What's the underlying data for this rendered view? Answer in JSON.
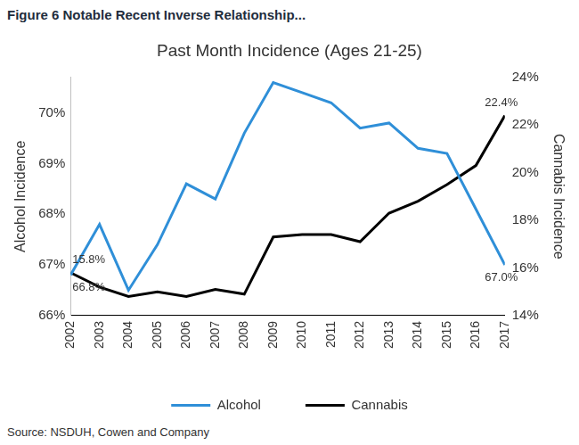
{
  "chart_data": {
    "type": "line",
    "title": "Figure 6 Notable Recent Inverse Relationship...",
    "subtitle": "Past Month Incidence (Ages 21-25)",
    "source": "Source: NSDUH, Cowen and Company",
    "categories": [
      "2002",
      "2003",
      "2004",
      "2005",
      "2006",
      "2007",
      "2008",
      "2009",
      "2010",
      "2011",
      "2012",
      "2013",
      "2014",
      "2015",
      "2016",
      "2017"
    ],
    "series": [
      {
        "name": "Alcohol",
        "color": "#2f8fd8",
        "axis": "y",
        "values": [
          66.8,
          67.8,
          66.5,
          67.4,
          68.6,
          68.3,
          69.6,
          70.6,
          70.4,
          70.2,
          69.7,
          69.8,
          69.3,
          69.2,
          68.1,
          67.0
        ]
      },
      {
        "name": "Cannabis",
        "color": "#000000",
        "axis": "y2",
        "values": [
          15.8,
          15.2,
          14.8,
          15.0,
          14.8,
          15.1,
          14.9,
          17.3,
          17.4,
          17.4,
          17.1,
          18.3,
          18.8,
          19.5,
          20.3,
          22.4
        ]
      }
    ],
    "y_label": "Alcohol Incidence",
    "y2_label": "Cannabis Incidence",
    "ylim": [
      66,
      70.7
    ],
    "yticks": [
      {
        "value": 66,
        "label": "66%"
      },
      {
        "value": 67,
        "label": "67%"
      },
      {
        "value": 68,
        "label": "68%"
      },
      {
        "value": 69,
        "label": "69%"
      },
      {
        "value": 70,
        "label": "70%"
      }
    ],
    "y2lim": [
      14,
      24
    ],
    "y2ticks": [
      {
        "value": 14,
        "label": "14%"
      },
      {
        "value": 16,
        "label": "16%"
      },
      {
        "value": 18,
        "label": "18%"
      },
      {
        "value": 20,
        "label": "20%"
      },
      {
        "value": 22,
        "label": "22%"
      },
      {
        "value": 24,
        "label": "24%"
      }
    ],
    "annotations": [
      {
        "text": "66.8%",
        "category": "2002",
        "series": "Alcohol"
      },
      {
        "text": "15.8%",
        "category": "2002",
        "series": "Cannabis"
      },
      {
        "text": "22.4%",
        "category": "2017",
        "series": "Cannabis"
      },
      {
        "text": "67.0%",
        "category": "2017",
        "series": "Alcohol"
      }
    ],
    "legend": "bottom",
    "grid": false
  }
}
